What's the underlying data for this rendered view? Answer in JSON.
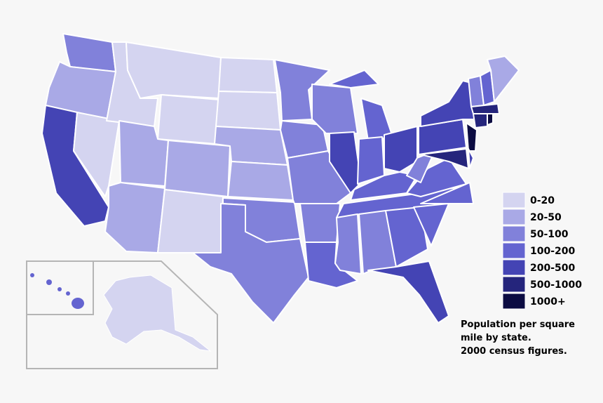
{
  "legend": {
    "items": [
      {
        "label": "0-20",
        "color": "#d4d4f0"
      },
      {
        "label": "20-50",
        "color": "#a9a9e6"
      },
      {
        "label": "50-100",
        "color": "#8181da"
      },
      {
        "label": "100-200",
        "color": "#6464d0"
      },
      {
        "label": "200-500",
        "color": "#4444b4"
      },
      {
        "label": "500-1000",
        "color": "#25257c"
      },
      {
        "label": "1000+",
        "color": "#0c0c42"
      }
    ]
  },
  "caption": [
    "Population per square",
    "mile by state.",
    "2000 census figures."
  ]
}
